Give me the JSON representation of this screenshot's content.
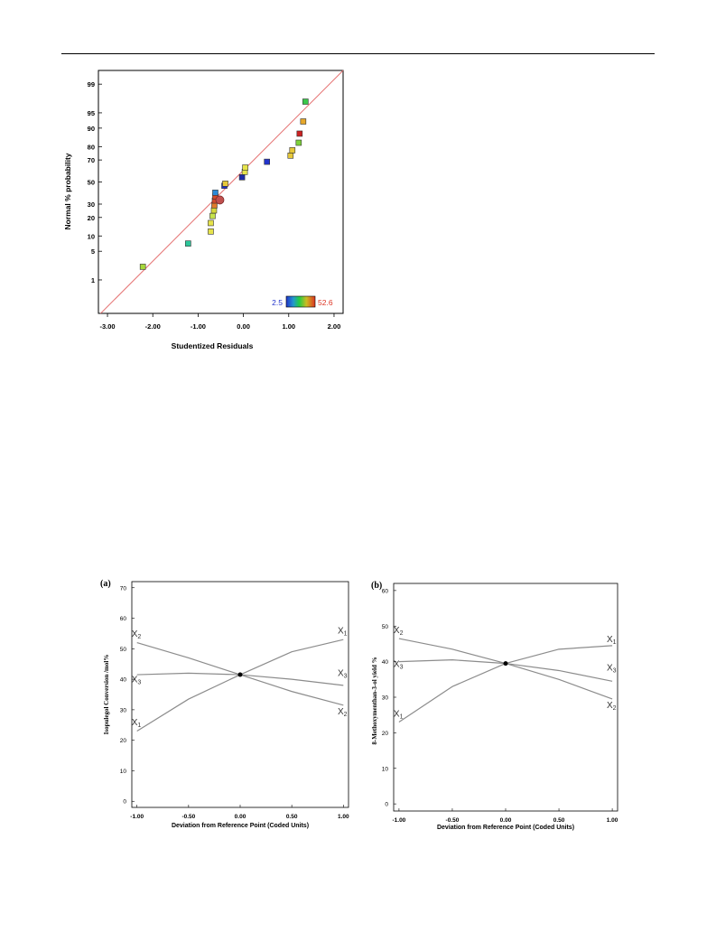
{
  "chart_data": [
    {
      "type": "scatter",
      "id": "normal-plot",
      "xlabel": "Studentized Residuals",
      "ylabel": "Normal % probability",
      "xlim": [
        -3.0,
        2.0
      ],
      "x_ticks": [
        -3.0,
        -2.0,
        -1.0,
        0.0,
        1.0,
        2.0
      ],
      "x_tick_labels": [
        "-3.00",
        "-2.00",
        "-1.00",
        "0.00",
        "1.00",
        "2.00"
      ],
      "y_ticks": [
        1,
        5,
        10,
        20,
        30,
        50,
        70,
        80,
        90,
        95,
        99
      ],
      "y_tick_labels": [
        "1",
        "5",
        "10",
        "20",
        "30",
        "50",
        "70",
        "80",
        "90",
        "95",
        "99"
      ],
      "ref_line": {
        "x": [
          -3.15,
          2.2
        ],
        "y": [
          0.09,
          99.6
        ],
        "color": "#e57373"
      },
      "color_scale": {
        "min_label": "2.5",
        "max_label": "52.6",
        "min_color": "#2233cc",
        "max_color": "#dd3322"
      },
      "points": [
        {
          "x": -2.22,
          "y": 2.2,
          "color": "#a6d83a"
        },
        {
          "x": -1.22,
          "y": 7.2,
          "color": "#2cc69a"
        },
        {
          "x": -0.72,
          "y": 12.0,
          "color": "#e6e34a"
        },
        {
          "x": -0.72,
          "y": 16.5,
          "color": "#e6e34a"
        },
        {
          "x": -0.68,
          "y": 21.0,
          "color": "#c6e34a"
        },
        {
          "x": -0.65,
          "y": 25.0,
          "color": "#d6d83a"
        },
        {
          "x": -0.64,
          "y": 29.0,
          "color": "#e07a2a"
        },
        {
          "x": -0.63,
          "y": 33.0,
          "color": "#d44a2a"
        },
        {
          "x": -0.62,
          "y": 36.5,
          "color": "#d44a2a"
        },
        {
          "x": -0.62,
          "y": 40.0,
          "color": "#2b8ad6"
        },
        {
          "x": -0.42,
          "y": 46.5,
          "color": "#2233cc"
        },
        {
          "x": -0.4,
          "y": 48.5,
          "color": "#e6c83a"
        },
        {
          "x": -0.03,
          "y": 54.5,
          "color": "#1c2aa8"
        },
        {
          "x": 0.03,
          "y": 59.5,
          "color": "#e6e34a"
        },
        {
          "x": 0.04,
          "y": 63.5,
          "color": "#e6e34a"
        },
        {
          "x": 0.52,
          "y": 68.5,
          "color": "#2233cc"
        },
        {
          "x": 1.04,
          "y": 73.5,
          "color": "#e6c83a"
        },
        {
          "x": 1.08,
          "y": 77.5,
          "color": "#e6c83a"
        },
        {
          "x": 1.22,
          "y": 82.5,
          "color": "#7ed23a"
        },
        {
          "x": 1.24,
          "y": 87.5,
          "color": "#cc2222"
        },
        {
          "x": 1.32,
          "y": 92.5,
          "color": "#e6a82a"
        },
        {
          "x": 1.37,
          "y": 97.2,
          "color": "#3ac84a"
        }
      ],
      "highlight_point": {
        "x": -0.52,
        "y": 33.5,
        "color": "#c0504d"
      }
    },
    {
      "type": "line",
      "id": "perturbation-a",
      "panel_label": "(a)",
      "xlabel": "Deviation from Reference Point (Coded Units)",
      "ylabel": "Isopulegol Conversion /mol%",
      "xlim": [
        -1.0,
        1.0
      ],
      "ylim": [
        0,
        70
      ],
      "x_ticks": [
        -1.0,
        -0.5,
        0.0,
        0.5,
        1.0
      ],
      "x_tick_labels": [
        "-1.00",
        "-0.50",
        "0.00",
        "0.50",
        "1.00"
      ],
      "y_ticks": [
        0,
        10,
        20,
        30,
        40,
        50,
        60,
        70
      ],
      "y_tick_labels": [
        "0",
        "10",
        "20",
        "30",
        "40",
        "50",
        "60",
        "70"
      ],
      "x": [
        -1.0,
        -0.5,
        0.0,
        0.5,
        1.0
      ],
      "series": [
        {
          "values": [
            23.0,
            33.5,
            41.5,
            49.0,
            53.0
          ]
        },
        {
          "values": [
            52.0,
            47.0,
            41.5,
            36.0,
            31.5
          ]
        },
        {
          "values": [
            41.5,
            42.0,
            41.5,
            40.0,
            38.0
          ]
        }
      ],
      "line_labels": [
        {
          "base": "X",
          "sub": "1",
          "side": "right",
          "y": 55.0
        },
        {
          "base": "X",
          "sub": "3",
          "side": "right",
          "y": 41.0
        },
        {
          "base": "X",
          "sub": "2",
          "side": "right",
          "y": 28.5
        },
        {
          "base": "X",
          "sub": "2",
          "side": "left",
          "y": 54.0
        },
        {
          "base": "X",
          "sub": "3",
          "side": "left",
          "y": 39.0
        },
        {
          "base": "X",
          "sub": "1",
          "side": "left",
          "y": 25.0
        }
      ],
      "center_point": {
        "x": 0.0,
        "y": 41.5
      }
    },
    {
      "type": "line",
      "id": "perturbation-b",
      "panel_label": "(b)",
      "xlabel": "Deviation from Reference Point (Coded Units)",
      "ylabel": "8-Methoxymenthan-3-ol yield %",
      "xlim": [
        -1.0,
        1.0
      ],
      "ylim": [
        0,
        60
      ],
      "x_ticks": [
        -1.0,
        -0.5,
        0.0,
        0.5,
        1.0
      ],
      "x_tick_labels": [
        "-1.00",
        "-0.50",
        "0.00",
        "0.50",
        "1.00"
      ],
      "y_ticks": [
        0,
        10,
        20,
        30,
        40,
        50,
        60
      ],
      "y_tick_labels": [
        "0",
        "10",
        "20",
        "30",
        "40",
        "50",
        "60"
      ],
      "x": [
        -1.0,
        -0.5,
        0.0,
        0.5,
        1.0
      ],
      "series": [
        {
          "values": [
            23.0,
            33.0,
            39.5,
            43.5,
            44.5
          ]
        },
        {
          "values": [
            46.5,
            43.5,
            39.5,
            35.0,
            29.5
          ]
        },
        {
          "values": [
            40.0,
            40.5,
            39.5,
            37.5,
            34.5
          ]
        }
      ],
      "line_labels": [
        {
          "base": "X",
          "sub": "1",
          "side": "right",
          "y": 45.5
        },
        {
          "base": "X",
          "sub": "3",
          "side": "right",
          "y": 37.5
        },
        {
          "base": "X",
          "sub": "2",
          "side": "right",
          "y": 27.0
        },
        {
          "base": "X",
          "sub": "2",
          "side": "left",
          "y": 48.0
        },
        {
          "base": "X",
          "sub": "3",
          "side": "left",
          "y": 38.5
        },
        {
          "base": "X",
          "sub": "1",
          "side": "left",
          "y": 24.5
        }
      ],
      "center_point": {
        "x": 0.0,
        "y": 39.5
      }
    }
  ]
}
